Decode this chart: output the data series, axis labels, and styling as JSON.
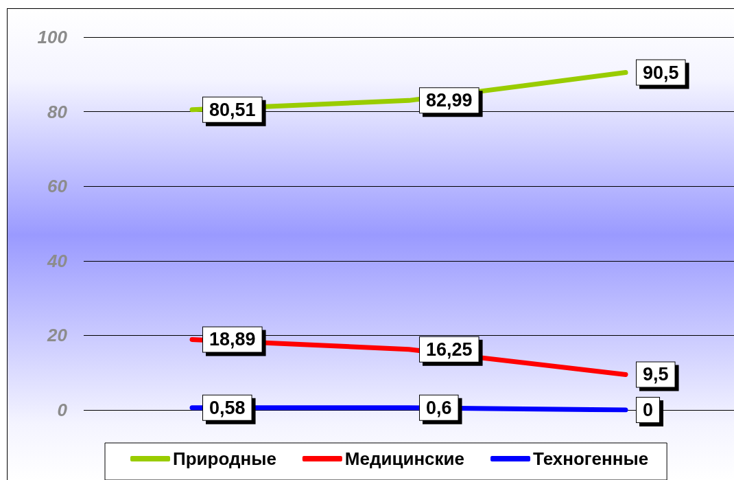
{
  "chart_data": {
    "type": "line",
    "categories": [
      null,
      null,
      null
    ],
    "series": [
      {
        "name": "Природные",
        "color": "#99cc00",
        "values": [
          80.51,
          82.99,
          90.5
        ],
        "value_labels": [
          "80,51",
          "82,99",
          "90,5"
        ]
      },
      {
        "name": "Медицинские",
        "color": "#ff0000",
        "values": [
          18.89,
          16.25,
          9.5
        ],
        "value_labels": [
          "18,89",
          "16,25",
          "9,5"
        ]
      },
      {
        "name": "Техногенные",
        "color": "#0000ff",
        "values": [
          0.58,
          0.6,
          0
        ],
        "value_labels": [
          "0,58",
          "0,6",
          "0"
        ]
      }
    ],
    "ylim": [
      0,
      100
    ],
    "yticks": [
      0,
      20,
      40,
      60,
      80,
      100
    ],
    "grid": "y",
    "legend": "bottom",
    "tick_labels": "y",
    "line_style": "solid"
  }
}
